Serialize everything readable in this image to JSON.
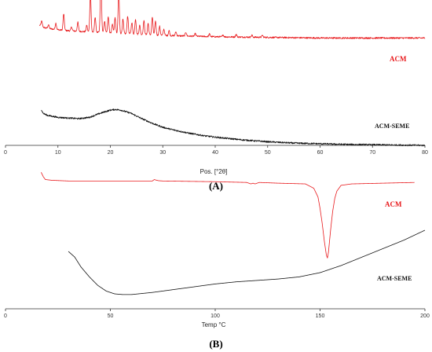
{
  "colors": {
    "acm": "#e8191c",
    "acm_seme": "#111111",
    "axis": "#333333"
  },
  "chart_data": [
    {
      "type": "line",
      "panel_label": "(A)",
      "xlabel": "Pos. [°2θ]",
      "ylabel": "",
      "xlim": [
        0,
        80
      ],
      "xticks": [
        0,
        10,
        20,
        30,
        40,
        50,
        60,
        70,
        80
      ],
      "ylim": [
        0,
        100
      ],
      "grid": false,
      "legend": "inline labels at right",
      "series": [
        {
          "name": "ACM",
          "color_key": "acm",
          "baseline": 72,
          "noise": 0.6,
          "x": [
            6.5,
            7.5,
            9,
            11,
            13,
            15,
            20,
            25,
            30,
            35,
            40,
            50,
            60,
            70,
            80
          ],
          "values": [
            82,
            80,
            79,
            78,
            77.5,
            77,
            76,
            75,
            74,
            73.5,
            73,
            72.5,
            72,
            72,
            72
          ],
          "peaks": [
            {
              "x": 6.9,
              "h": 4
            },
            {
              "x": 8.2,
              "h": 3
            },
            {
              "x": 9.6,
              "h": 5
            },
            {
              "x": 11.1,
              "h": 13
            },
            {
              "x": 12.6,
              "h": 3
            },
            {
              "x": 13.8,
              "h": 7
            },
            {
              "x": 15.5,
              "h": 5
            },
            {
              "x": 16.2,
              "h": 30
            },
            {
              "x": 17.1,
              "h": 12
            },
            {
              "x": 18.2,
              "h": 47
            },
            {
              "x": 18.9,
              "h": 9
            },
            {
              "x": 19.6,
              "h": 13
            },
            {
              "x": 20.4,
              "h": 7
            },
            {
              "x": 20.9,
              "h": 12
            },
            {
              "x": 21.6,
              "h": 33
            },
            {
              "x": 22.4,
              "h": 11
            },
            {
              "x": 23.3,
              "h": 14
            },
            {
              "x": 24.1,
              "h": 9
            },
            {
              "x": 24.8,
              "h": 12
            },
            {
              "x": 25.6,
              "h": 7
            },
            {
              "x": 26.4,
              "h": 11
            },
            {
              "x": 27.2,
              "h": 9
            },
            {
              "x": 28.0,
              "h": 14
            },
            {
              "x": 28.6,
              "h": 11
            },
            {
              "x": 29.4,
              "h": 7
            },
            {
              "x": 30.2,
              "h": 5
            },
            {
              "x": 31.2,
              "h": 4
            },
            {
              "x": 32.5,
              "h": 3
            },
            {
              "x": 34.4,
              "h": 3
            },
            {
              "x": 36.2,
              "h": 2
            },
            {
              "x": 38.9,
              "h": 2
            },
            {
              "x": 41.5,
              "h": 1.5
            },
            {
              "x": 44.0,
              "h": 2
            },
            {
              "x": 47.0,
              "h": 1.5
            },
            {
              "x": 49.0,
              "h": 1.5
            }
          ]
        },
        {
          "name": "ACM-SEME",
          "color_key": "acm_seme",
          "noise": 1.2,
          "x": [
            6.8,
            7.2,
            8,
            10,
            12,
            14,
            16,
            18,
            20,
            21,
            22,
            24,
            26,
            28,
            30,
            32,
            35,
            38,
            40,
            45,
            50,
            55,
            60,
            65,
            70,
            75,
            80
          ],
          "values": [
            58,
            52,
            49,
            46,
            45,
            44,
            46,
            52,
            57,
            58,
            57,
            52,
            44,
            37,
            31,
            27,
            22,
            18,
            16,
            12,
            9,
            7,
            6,
            5,
            4.5,
            4,
            3.5
          ]
        }
      ]
    },
    {
      "type": "line",
      "panel_label": "(B)",
      "xlabel": "Temp °C",
      "ylabel": "",
      "xlim": [
        0,
        200
      ],
      "xticks": [
        0,
        50,
        100,
        150,
        200
      ],
      "ylim": [
        0,
        100
      ],
      "grid": false,
      "legend": "inline labels at right",
      "series": [
        {
          "name": "ACM",
          "color_key": "acm",
          "x": [
            17,
            18,
            19,
            22,
            30,
            50,
            70,
            71,
            72,
            73,
            75,
            100,
            115,
            117,
            118,
            119,
            121,
            130,
            143,
            147,
            149,
            150,
            151,
            152,
            153,
            153.5,
            154,
            155,
            156,
            157,
            158,
            160,
            165,
            180,
            195
          ],
          "values": [
            95,
            92,
            90,
            89.5,
            89,
            89,
            89,
            90,
            89.5,
            89.2,
            89,
            88.5,
            88,
            87,
            87.5,
            87,
            88,
            87.5,
            87,
            84,
            78,
            70,
            60,
            48,
            38,
            36,
            40,
            55,
            68,
            77,
            82,
            86,
            87,
            87.5,
            88
          ]
        },
        {
          "name": "ACM-SEME",
          "color_key": "acm_seme",
          "x": [
            30,
            33,
            36,
            40,
            44,
            48,
            52,
            56,
            60,
            70,
            80,
            90,
            100,
            110,
            120,
            130,
            140,
            150,
            160,
            170,
            180,
            190,
            200
          ],
          "values": [
            40,
            36,
            29,
            22,
            16,
            12,
            10,
            9.5,
            9.5,
            11,
            13,
            15,
            17,
            18.5,
            19.5,
            20.5,
            22,
            25,
            30,
            36,
            42,
            48,
            55
          ]
        }
      ]
    }
  ]
}
